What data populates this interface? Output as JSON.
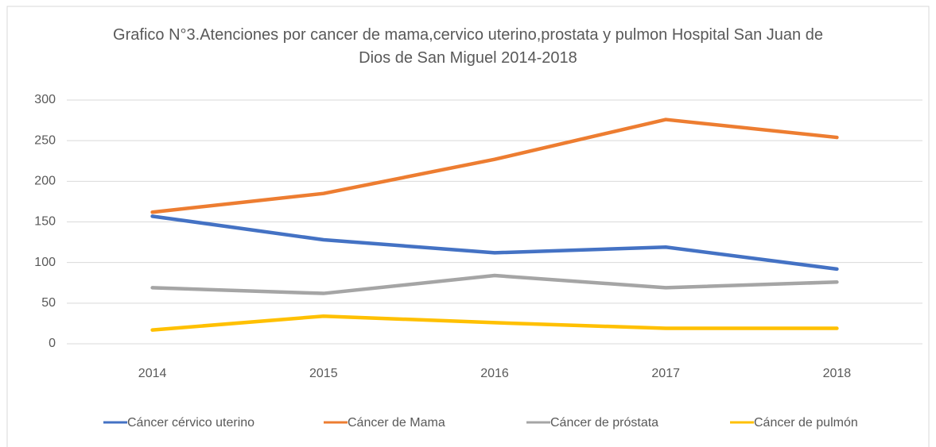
{
  "chart_data": {
    "type": "line",
    "title": "Grafico N°3.Atenciones por cancer de mama,cervico uterino,prostata y pulmon Hospital San Juan de Dios de San Miguel 2014-2018",
    "categories": [
      "2014",
      "2015",
      "2016",
      "2017",
      "2018"
    ],
    "series": [
      {
        "name": "Cáncer cérvico uterino",
        "color": "#4472c4",
        "values": [
          157,
          128,
          112,
          119,
          92
        ]
      },
      {
        "name": "Cáncer de Mama",
        "color": "#ed7d31",
        "values": [
          162,
          185,
          227,
          276,
          254
        ]
      },
      {
        "name": "Cáncer de próstata",
        "color": "#a5a5a5",
        "values": [
          69,
          62,
          84,
          69,
          76
        ]
      },
      {
        "name": "Cáncer de pulmón",
        "color": "#ffc000",
        "values": [
          17,
          34,
          26,
          19,
          19
        ]
      }
    ],
    "ylim": [
      0,
      300
    ],
    "yticks": [
      0,
      50,
      100,
      150,
      200,
      250,
      300
    ],
    "grid": true,
    "legend": "bottom"
  }
}
